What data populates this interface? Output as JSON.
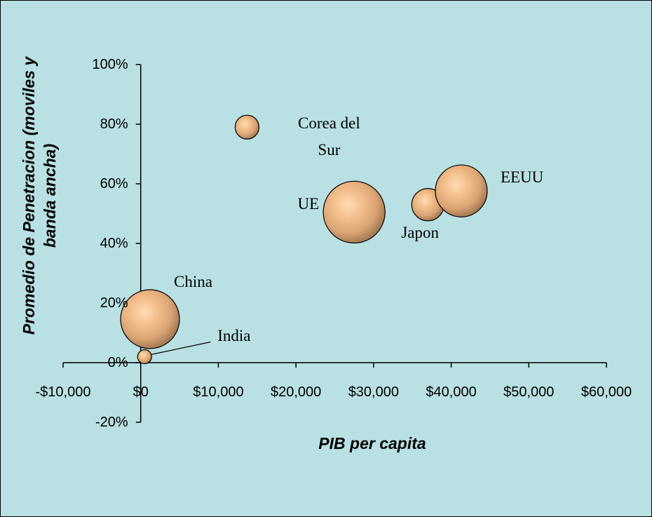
{
  "chart_data": {
    "type": "bubble",
    "x_label": "PIB per capita",
    "y_label": "Promedio de Penetracion (moviles y banda ancha)",
    "categories": [
      "Corea del Sur",
      "UE",
      "Japon",
      "EEUU",
      "China",
      "India"
    ],
    "x": [
      13700,
      27500,
      37000,
      41300,
      1200,
      500
    ],
    "values": [
      79,
      50.5,
      53,
      57.6,
      14.6,
      2
    ],
    "sizes": [
      2.9,
      19.4,
      5.3,
      13.7,
      17.6,
      1
    ],
    "color": "#f5c08e",
    "xlim": [
      -10000,
      60000
    ],
    "xticks": [
      {
        "value": -10000,
        "label": "-$10,000"
      },
      {
        "value": 0,
        "label": "$0"
      },
      {
        "value": 10000,
        "label": "$10,000"
      },
      {
        "value": 20000,
        "label": "$20,000"
      },
      {
        "value": 30000,
        "label": "$30,000"
      },
      {
        "value": 40000,
        "label": "$40,000"
      },
      {
        "value": 50000,
        "label": "$50,000"
      },
      {
        "value": 60000,
        "label": "$60,000"
      }
    ],
    "ylim": [
      -20,
      100
    ],
    "yticks": [
      {
        "value": -20,
        "label": "-20%"
      },
      {
        "value": 0,
        "label": "0%"
      },
      {
        "value": 20,
        "label": "20%"
      },
      {
        "value": 40,
        "label": "40%"
      },
      {
        "value": 60,
        "label": "60%"
      },
      {
        "value": 80,
        "label": "80%"
      },
      {
        "value": 100,
        "label": "100%"
      }
    ]
  }
}
